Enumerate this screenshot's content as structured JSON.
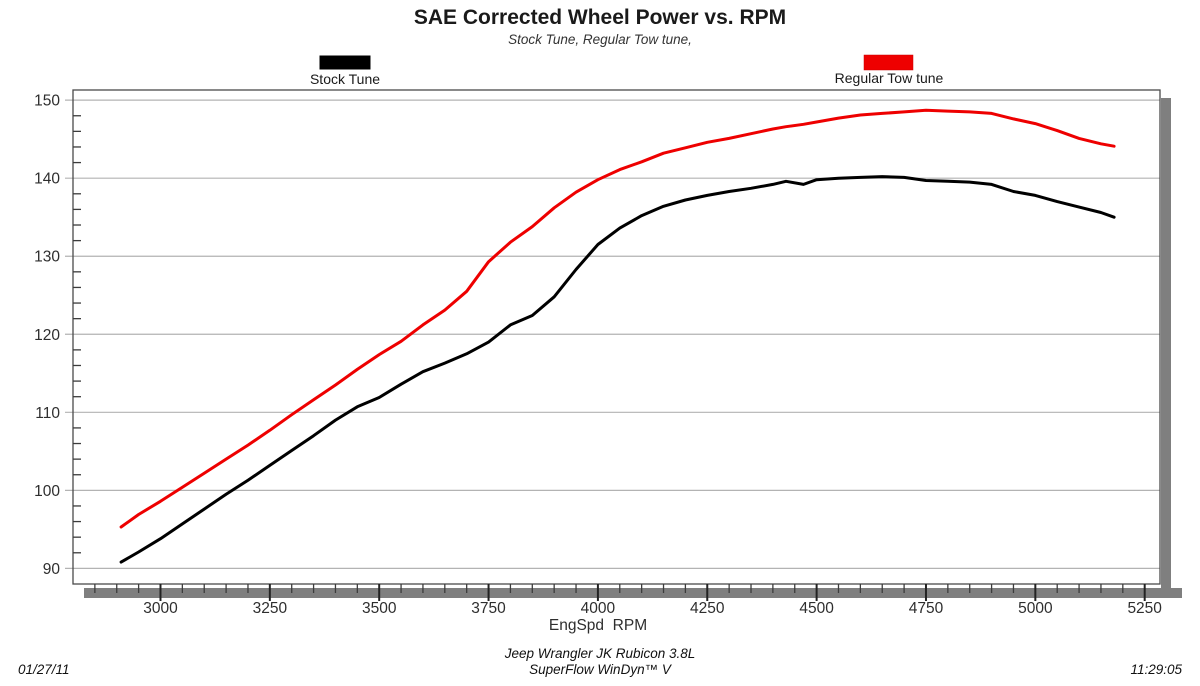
{
  "header": {
    "title": "SAE Corrected Wheel Power vs. RPM",
    "subtitle": "Stock Tune, Regular Tow tune,"
  },
  "legend": [
    {
      "label": "Stock Tune",
      "color": "#000000"
    },
    {
      "label": "Regular Tow tune",
      "color": "#ee0000"
    }
  ],
  "footer": {
    "date": "01/27/11",
    "vehicle": "Jeep Wrangler JK Rubicon 3.8L",
    "software": "SuperFlow WinDyn™ V",
    "time": "11:29:05"
  },
  "chart_data": {
    "type": "line",
    "title": "SAE Corrected Wheel Power vs. RPM",
    "subtitle": "Stock Tune, Regular Tow tune,",
    "xlabel": "EngSpd  RPM",
    "ylabel": "",
    "xlim": [
      2800,
      5285
    ],
    "ylim": [
      88,
      151.3
    ],
    "x_major_ticks": [
      3000,
      3250,
      3500,
      3750,
      4000,
      4250,
      4500,
      4750,
      5000,
      5250
    ],
    "x_minor_step": 50,
    "y_major_ticks": [
      90,
      100,
      110,
      120,
      130,
      140,
      150
    ],
    "y_minor_step": 2,
    "grid": "horizontal-major-only",
    "legend_position": "top",
    "frame_shadow_color": "#7f7f7f",
    "gridline_color": "#b3b3b3",
    "x": [
      2910,
      2950,
      3000,
      3050,
      3100,
      3150,
      3200,
      3250,
      3300,
      3350,
      3400,
      3450,
      3500,
      3550,
      3600,
      3650,
      3700,
      3750,
      3800,
      3850,
      3900,
      3950,
      4000,
      4050,
      4100,
      4150,
      4200,
      4250,
      4300,
      4350,
      4400,
      4430,
      4470,
      4500,
      4550,
      4600,
      4650,
      4700,
      4750,
      4800,
      4850,
      4900,
      4950,
      5000,
      5050,
      5100,
      5150,
      5180
    ],
    "series": [
      {
        "name": "Stock Tune",
        "color": "#000000",
        "values": [
          90.8,
          92.1,
          93.8,
          95.7,
          97.6,
          99.5,
          101.3,
          103.2,
          105.1,
          107.0,
          109.0,
          110.7,
          111.9,
          113.6,
          115.2,
          116.3,
          117.5,
          119.0,
          121.2,
          122.4,
          124.8,
          128.3,
          131.5,
          133.6,
          135.2,
          136.4,
          137.2,
          137.8,
          138.3,
          138.7,
          139.2,
          139.6,
          139.2,
          139.8,
          140.0,
          140.1,
          140.2,
          140.1,
          139.7,
          139.6,
          139.5,
          139.2,
          138.3,
          137.8,
          137.0,
          136.3,
          135.6,
          135.0
        ]
      },
      {
        "name": "Regular Tow tune",
        "color": "#ee0000",
        "values": [
          95.3,
          96.9,
          98.6,
          100.4,
          102.2,
          104.0,
          105.8,
          107.7,
          109.7,
          111.6,
          113.5,
          115.5,
          117.4,
          119.1,
          121.2,
          123.1,
          125.5,
          129.3,
          131.8,
          133.8,
          136.2,
          138.2,
          139.8,
          141.1,
          142.1,
          143.2,
          143.9,
          144.6,
          145.1,
          145.7,
          146.3,
          146.6,
          146.9,
          147.2,
          147.7,
          148.1,
          148.3,
          148.5,
          148.7,
          148.6,
          148.5,
          148.3,
          147.6,
          147.0,
          146.1,
          145.1,
          144.4,
          144.1
        ]
      }
    ]
  }
}
